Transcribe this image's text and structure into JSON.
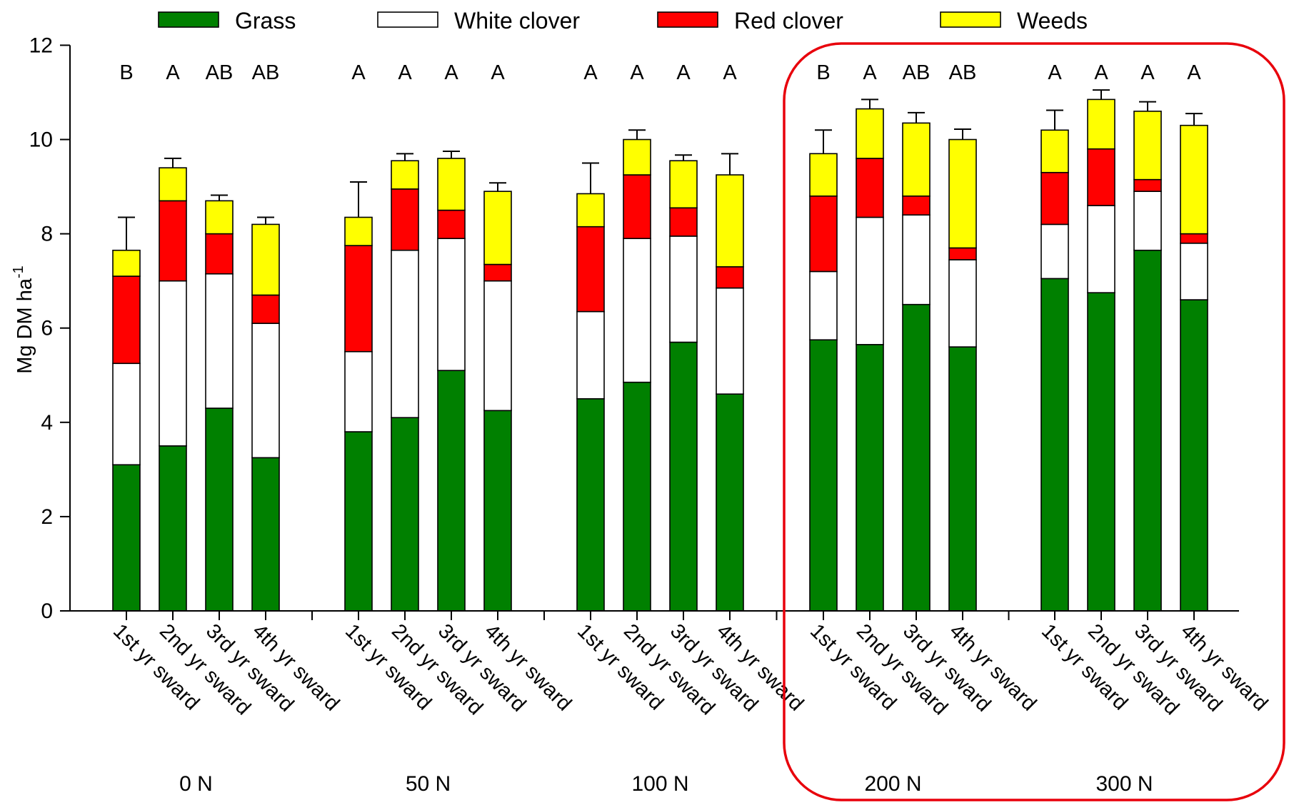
{
  "chart_data": {
    "type": "bar",
    "stacked": true,
    "ylabel": "Mg DM ha",
    "ylabel_sup": "-1",
    "ylim": [
      0,
      12
    ],
    "yticks": [
      0,
      2,
      4,
      6,
      8,
      10,
      12
    ],
    "legend_position": "top",
    "grid": false,
    "highlight_box_groups": [
      "200 N",
      "300 N"
    ],
    "highlight_color": "#e8000b",
    "legend": [
      {
        "name": "Grass",
        "color": "#008000"
      },
      {
        "name": "White clover",
        "color": "#ffffff"
      },
      {
        "name": "Red clover",
        "color": "#ff0000"
      },
      {
        "name": "Weeds",
        "color": "#ffff00"
      }
    ],
    "groups": [
      {
        "label": "0 N",
        "categories": [
          "1st yr sward",
          "2nd yr sward",
          "3rd yr sward",
          "4th yr sward"
        ],
        "letters": [
          "B",
          "A",
          "AB",
          "AB"
        ],
        "grass": [
          3.1,
          3.5,
          4.3,
          3.25
        ],
        "white_clover": [
          2.15,
          3.5,
          2.85,
          2.85
        ],
        "red_clover": [
          1.85,
          1.7,
          0.85,
          0.6
        ],
        "weeds": [
          0.55,
          0.7,
          0.7,
          1.5
        ],
        "error": [
          0.7,
          0.2,
          0.12,
          0.15
        ]
      },
      {
        "label": "50 N",
        "categories": [
          "1st yr sward",
          "2nd yr sward",
          "3rd yr sward",
          "4th yr sward"
        ],
        "letters": [
          "A",
          "A",
          "A",
          "A"
        ],
        "grass": [
          3.8,
          4.1,
          5.1,
          4.25
        ],
        "white_clover": [
          1.7,
          3.55,
          2.8,
          2.75
        ],
        "red_clover": [
          2.25,
          1.3,
          0.6,
          0.35
        ],
        "weeds": [
          0.6,
          0.6,
          1.1,
          1.55
        ],
        "error": [
          0.75,
          0.15,
          0.15,
          0.18
        ]
      },
      {
        "label": "100 N",
        "categories": [
          "1st yr sward",
          "2nd yr sward",
          "3rd yr sward",
          "4th yr sward"
        ],
        "letters": [
          "A",
          "A",
          "A",
          "A"
        ],
        "grass": [
          4.5,
          4.85,
          5.7,
          4.6
        ],
        "white_clover": [
          1.85,
          3.05,
          2.25,
          2.25
        ],
        "red_clover": [
          1.8,
          1.35,
          0.6,
          0.45
        ],
        "weeds": [
          0.7,
          0.75,
          1.0,
          1.95
        ],
        "error": [
          0.65,
          0.2,
          0.12,
          0.45
        ]
      },
      {
        "label": "200 N",
        "categories": [
          "1st yr sward",
          "2nd yr sward",
          "3rd yr sward",
          "4th yr sward"
        ],
        "letters": [
          "B",
          "A",
          "AB",
          "AB"
        ],
        "grass": [
          5.75,
          5.65,
          6.5,
          5.6
        ],
        "white_clover": [
          1.45,
          2.7,
          1.9,
          1.85
        ],
        "red_clover": [
          1.6,
          1.25,
          0.4,
          0.25
        ],
        "weeds": [
          0.9,
          1.05,
          1.55,
          2.3
        ],
        "error": [
          0.5,
          0.2,
          0.22,
          0.22
        ]
      },
      {
        "label": "300 N",
        "categories": [
          "1st yr sward",
          "2nd yr sward",
          "3rd yr sward",
          "4th yr sward"
        ],
        "letters": [
          "A",
          "A",
          "A",
          "A"
        ],
        "grass": [
          7.05,
          6.75,
          7.65,
          6.6
        ],
        "white_clover": [
          1.15,
          1.85,
          1.25,
          1.2
        ],
        "red_clover": [
          1.1,
          1.2,
          0.25,
          0.2
        ],
        "weeds": [
          0.9,
          1.05,
          1.45,
          2.3
        ],
        "error": [
          0.42,
          0.2,
          0.2,
          0.25
        ]
      }
    ]
  }
}
